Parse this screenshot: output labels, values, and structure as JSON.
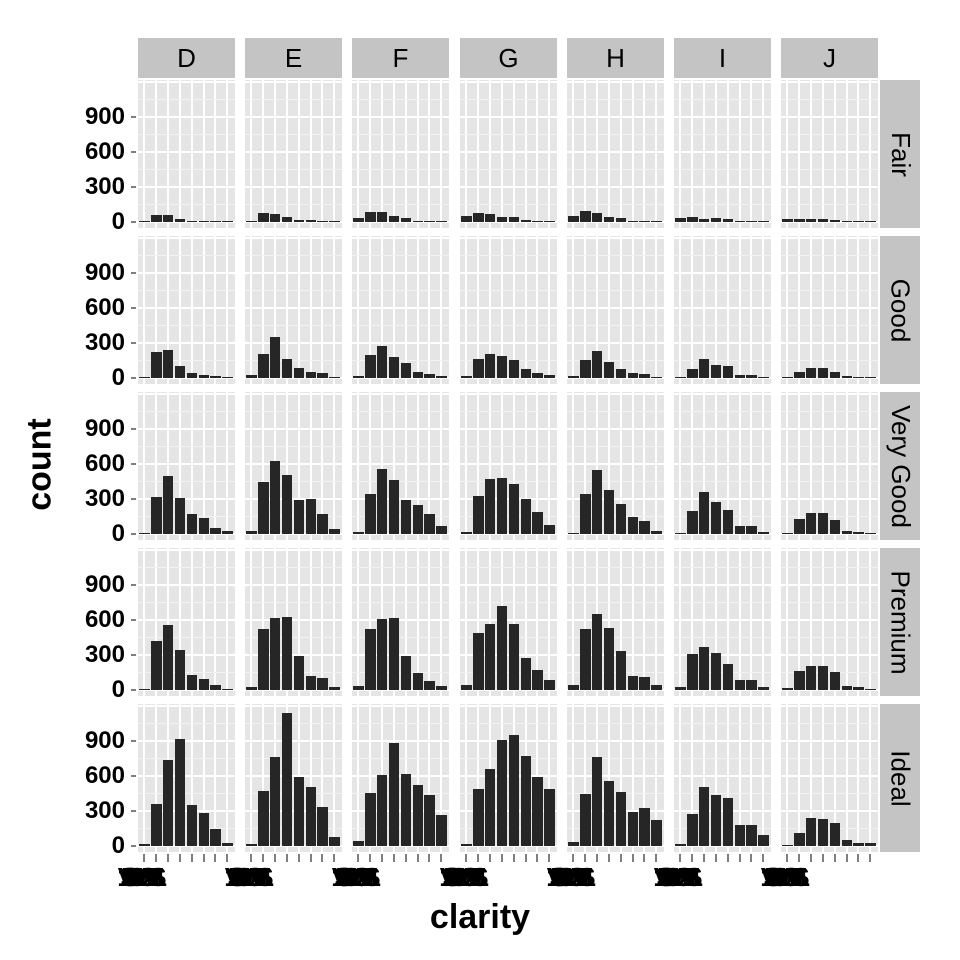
{
  "chart_data": {
    "type": "bar",
    "xlabel": "clarity",
    "ylabel": "count",
    "ylim": [
      0,
      1250
    ],
    "yticks": [
      0,
      300,
      600,
      900
    ],
    "categories": [
      "I1",
      "SI2",
      "SI1",
      "VS2",
      "VS1",
      "VVS2",
      "VVS1",
      "IF"
    ],
    "col_facets": [
      "D",
      "E",
      "F",
      "G",
      "H",
      "I",
      "J"
    ],
    "row_facets": [
      "Fair",
      "Good",
      "Very Good",
      "Premium",
      "Ideal"
    ],
    "values": {
      "Fair": {
        "D": [
          4,
          56,
          58,
          25,
          5,
          9,
          3,
          3
        ],
        "E": [
          9,
          78,
          65,
          42,
          14,
          13,
          3,
          0
        ],
        "F": [
          35,
          89,
          83,
          53,
          33,
          10,
          5,
          4
        ],
        "G": [
          53,
          80,
          69,
          45,
          45,
          17,
          3,
          2
        ],
        "H": [
          52,
          91,
          75,
          41,
          32,
          11,
          1,
          0
        ],
        "I": [
          34,
          45,
          30,
          32,
          25,
          8,
          1,
          0
        ],
        "J": [
          23,
          27,
          28,
          23,
          16,
          1,
          1,
          0
        ]
      },
      "Good": {
        "D": [
          8,
          223,
          237,
          104,
          43,
          25,
          13,
          9
        ],
        "E": [
          23,
          202,
          355,
          160,
          89,
          52,
          43,
          9
        ],
        "F": [
          19,
          201,
          273,
          184,
          132,
          50,
          35,
          15
        ],
        "G": [
          19,
          163,
          207,
          192,
          152,
          75,
          41,
          22
        ],
        "H": [
          14,
          158,
          235,
          138,
          77,
          45,
          31,
          4
        ],
        "I": [
          9,
          81,
          165,
          110,
          103,
          26,
          22,
          6
        ],
        "J": [
          4,
          53,
          88,
          90,
          52,
          13,
          1,
          6
        ]
      },
      "Very Good": {
        "D": [
          5,
          314,
          494,
          309,
          175,
          141,
          52,
          23
        ],
        "E": [
          22,
          445,
          626,
          503,
          293,
          298,
          170,
          43
        ],
        "F": [
          13,
          343,
          559,
          466,
          293,
          249,
          174,
          67
        ],
        "G": [
          16,
          327,
          474,
          479,
          432,
          302,
          190,
          79
        ],
        "H": [
          12,
          343,
          547,
          376,
          257,
          145,
          115,
          29
        ],
        "I": [
          8,
          200,
          358,
          274,
          205,
          71,
          69,
          19
        ],
        "J": [
          8,
          128,
          182,
          184,
          120,
          29,
          19,
          5
        ]
      },
      "Premium": {
        "D": [
          12,
          421,
          556,
          339,
          131,
          94,
          40,
          10
        ],
        "E": [
          30,
          519,
          614,
          629,
          292,
          121,
          105,
          27
        ],
        "F": [
          34,
          523,
          608,
          619,
          290,
          146,
          80,
          31
        ],
        "G": [
          46,
          492,
          566,
          721,
          566,
          275,
          171,
          87
        ],
        "H": [
          46,
          521,
          655,
          532,
          336,
          118,
          112,
          40
        ],
        "I": [
          24,
          312,
          367,
          315,
          221,
          82,
          84,
          23
        ],
        "J": [
          13,
          161,
          209,
          202,
          153,
          34,
          24,
          12
        ]
      },
      "Ideal": {
        "D": [
          13,
          356,
          738,
          920,
          351,
          284,
          144,
          28
        ],
        "E": [
          18,
          469,
          766,
          1136,
          593,
          507,
          335,
          79
        ],
        "F": [
          42,
          453,
          608,
          879,
          616,
          520,
          440,
          268
        ],
        "G": [
          16,
          486,
          660,
          910,
          953,
          774,
          594,
          491
        ],
        "H": [
          38,
          450,
          763,
          556,
          467,
          289,
          326,
          226
        ],
        "I": [
          17,
          274,
          504,
          438,
          408,
          178,
          179,
          95
        ],
        "J": [
          2,
          110,
          243,
          232,
          201,
          54,
          29,
          25
        ]
      }
    }
  }
}
